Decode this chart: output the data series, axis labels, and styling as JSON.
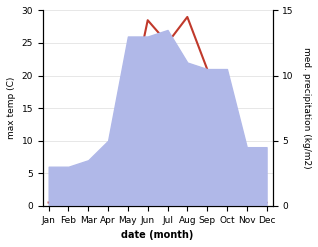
{
  "months": [
    "Jan",
    "Feb",
    "Mar",
    "Apr",
    "May",
    "Jun",
    "Jul",
    "Aug",
    "Sep",
    "Oct",
    "Nov",
    "Dec"
  ],
  "temp": [
    0.5,
    1.0,
    3.0,
    7.0,
    14.0,
    28.5,
    25.0,
    29.0,
    21.0,
    10.0,
    2.0,
    0.5
  ],
  "precip": [
    3.0,
    3.0,
    3.5,
    5.0,
    13.0,
    13.0,
    13.5,
    11.0,
    10.5,
    10.5,
    4.5,
    4.5
  ],
  "temp_color": "#c0392b",
  "precip_fill_color": "#b0b8e8",
  "temp_ylim": [
    0,
    30
  ],
  "precip_ylim": [
    0,
    15
  ],
  "xlabel": "date (month)",
  "ylabel_left": "max temp (C)",
  "ylabel_right": "med. precipitation (kg/m2)",
  "temp_linewidth": 1.5,
  "bg_color": "#ffffff",
  "tick_fontsize": 6.5,
  "label_fontsize": 7.0
}
